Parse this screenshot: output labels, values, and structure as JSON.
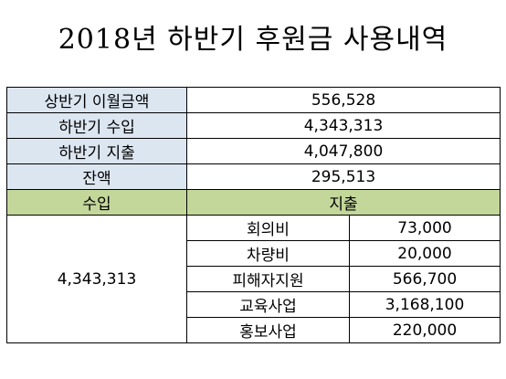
{
  "title": "2018년 하반기 후원금 사용내역",
  "summary": [
    {
      "label": "상반기 이월금액",
      "value": "556,528"
    },
    {
      "label": "하반기 수입",
      "value": "4,343,313"
    },
    {
      "label": "하반기 지출",
      "value": "4,047,800"
    },
    {
      "label": "잔액",
      "value": "295,513"
    }
  ],
  "headers": {
    "income": "수입",
    "expense": "지출"
  },
  "income_total": "4,343,313",
  "expenses": [
    {
      "item": "회의비",
      "amount": "73,000"
    },
    {
      "item": "차량비",
      "amount": "20,000"
    },
    {
      "item": "피해자지원",
      "amount": "566,700"
    },
    {
      "item": "교육사업",
      "amount": "3,168,100"
    },
    {
      "item": "홍보사업",
      "amount": "220,000"
    }
  ],
  "colors": {
    "label_fill": "#dce6f1",
    "header_fill": "#c4d79b"
  }
}
